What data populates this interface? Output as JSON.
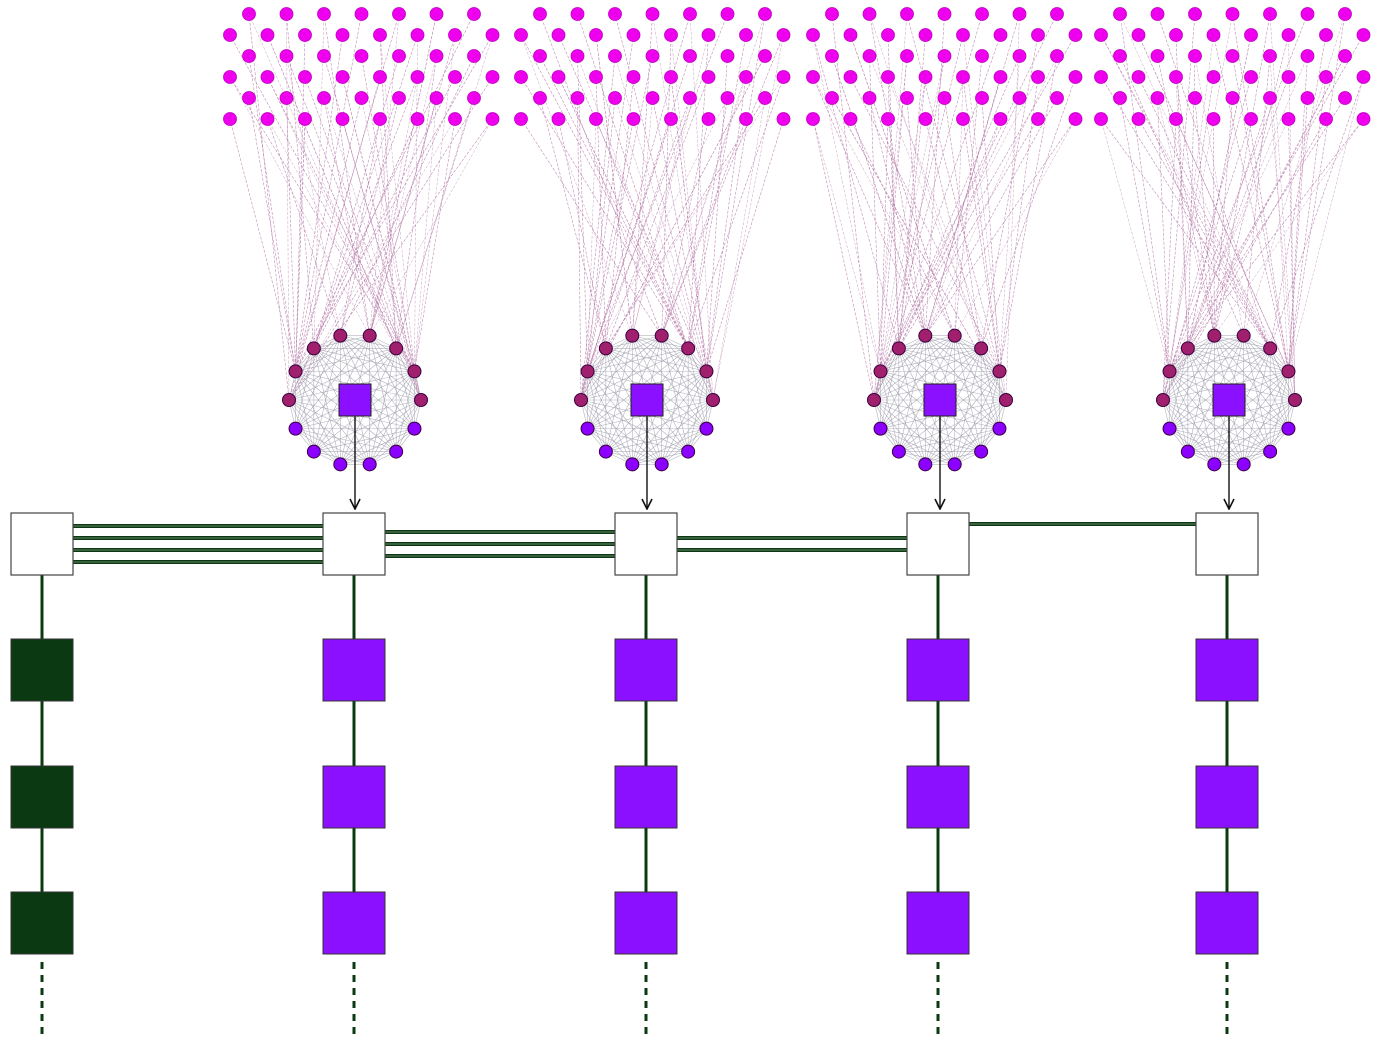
{
  "colors": {
    "background": "#ffffff",
    "input_node": "#ee00ee",
    "upper_ring_node": "#a0206e",
    "lower_ring_node": "#8b00ff",
    "ring_edge": "#9a9aaa",
    "fan_edge": "#b57aa8",
    "hub_block": "#8b10ff",
    "bus_line": "#0b3a12",
    "bus_node_fill": "#ffffff",
    "leading_block": "#0b3a12",
    "chain_block": "#8b10ff"
  },
  "diagram": {
    "left_chain": {
      "block_color": "leading_block",
      "blocks_shown": 3,
      "continues": true
    },
    "bus": {
      "description_none": "",
      "segments_line_counts": [
        4,
        3,
        2,
        1
      ]
    },
    "clusters": [
      {
        "input_nodes": "grid",
        "ring_nodes": 14,
        "upper_ring_nodes": 8,
        "lower_ring_nodes": 6,
        "chain_blocks_shown": 3,
        "continues": true
      },
      {
        "input_nodes": "grid",
        "ring_nodes": 14,
        "upper_ring_nodes": 8,
        "lower_ring_nodes": 6,
        "chain_blocks_shown": 3,
        "continues": true
      },
      {
        "input_nodes": "grid",
        "ring_nodes": 14,
        "upper_ring_nodes": 8,
        "lower_ring_nodes": 6,
        "chain_blocks_shown": 3,
        "continues": true
      },
      {
        "input_nodes": "grid",
        "ring_nodes": 14,
        "upper_ring_nodes": 8,
        "lower_ring_nodes": 6,
        "chain_blocks_shown": 3,
        "continues": true
      }
    ]
  }
}
